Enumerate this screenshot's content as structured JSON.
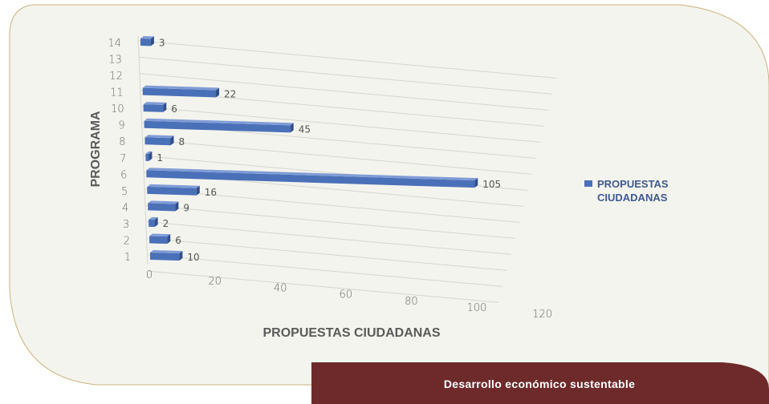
{
  "chart_data": {
    "type": "bar",
    "orientation": "horizontal",
    "style": "3d",
    "categories": [
      "1",
      "2",
      "3",
      "4",
      "5",
      "6",
      "7",
      "8",
      "9",
      "10",
      "11",
      "12",
      "13",
      "14"
    ],
    "series": [
      {
        "name": "PROPUESTAS CIUDADANAS",
        "values": [
          10,
          6,
          2,
          9,
          16,
          105,
          1,
          8,
          45,
          6,
          22,
          null,
          null,
          3
        ]
      }
    ],
    "data_labels": [
      "10",
      "6",
      "2",
      "9",
      "16",
      "105",
      "1",
      "8",
      "45",
      "6",
      "22",
      "",
      "",
      "3"
    ],
    "xlabel": "PROPUESTAS CIUDADANAS",
    "ylabel": "PROGRAMA",
    "xlim": [
      0,
      120
    ],
    "xticks": [
      "0",
      "20",
      "40",
      "60",
      "80",
      "100",
      "120"
    ],
    "legend": {
      "position": "right",
      "labels": [
        "PROPUESTAS",
        "CIUDADANAS"
      ]
    },
    "grid": true,
    "colors": {
      "bar": "#4a70b8",
      "bar_dark": "#2f4f8a",
      "bar_light": "#7f9cd6"
    }
  },
  "footer": {
    "text": "Desarrollo económico sustentable"
  },
  "colors": {
    "panel": "#f4f4ee",
    "panel_border": "#c8b37a",
    "footer_bg": "#6e2a2a"
  }
}
